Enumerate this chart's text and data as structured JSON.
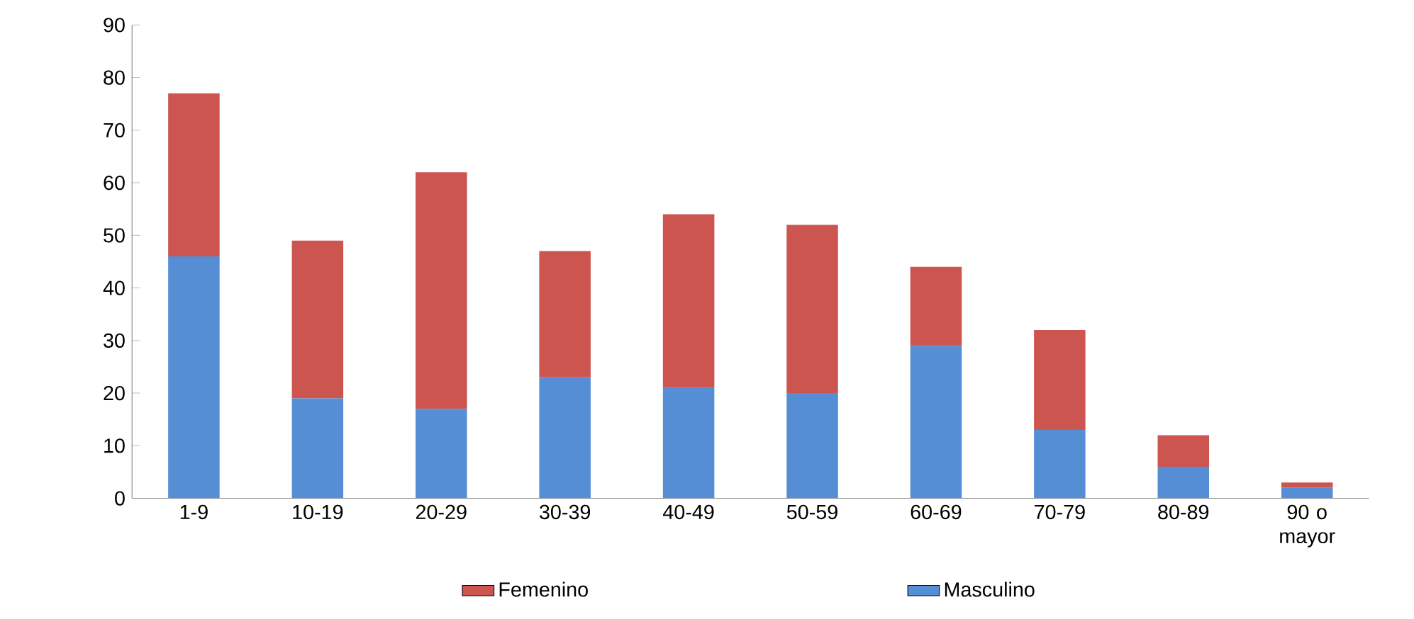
{
  "chart_data": {
    "type": "bar",
    "stacked": true,
    "categories": [
      "1-9",
      "10-19",
      "20-29",
      "30-39",
      "40-49",
      "50-59",
      "60-69",
      "70-79",
      "80-89",
      "90 o mayor"
    ],
    "series": [
      {
        "name": "Masculino",
        "color": "#558ed5",
        "values": [
          46,
          19,
          17,
          23,
          21,
          20,
          29,
          13,
          6,
          2
        ]
      },
      {
        "name": "Femenino",
        "color": "#cc5550",
        "values": [
          31,
          30,
          45,
          24,
          33,
          32,
          15,
          19,
          6,
          1
        ]
      }
    ],
    "ylim": [
      0,
      90
    ],
    "yticks": [
      0,
      10,
      20,
      30,
      40,
      50,
      60,
      70,
      80,
      90
    ],
    "legend": "bottom"
  }
}
